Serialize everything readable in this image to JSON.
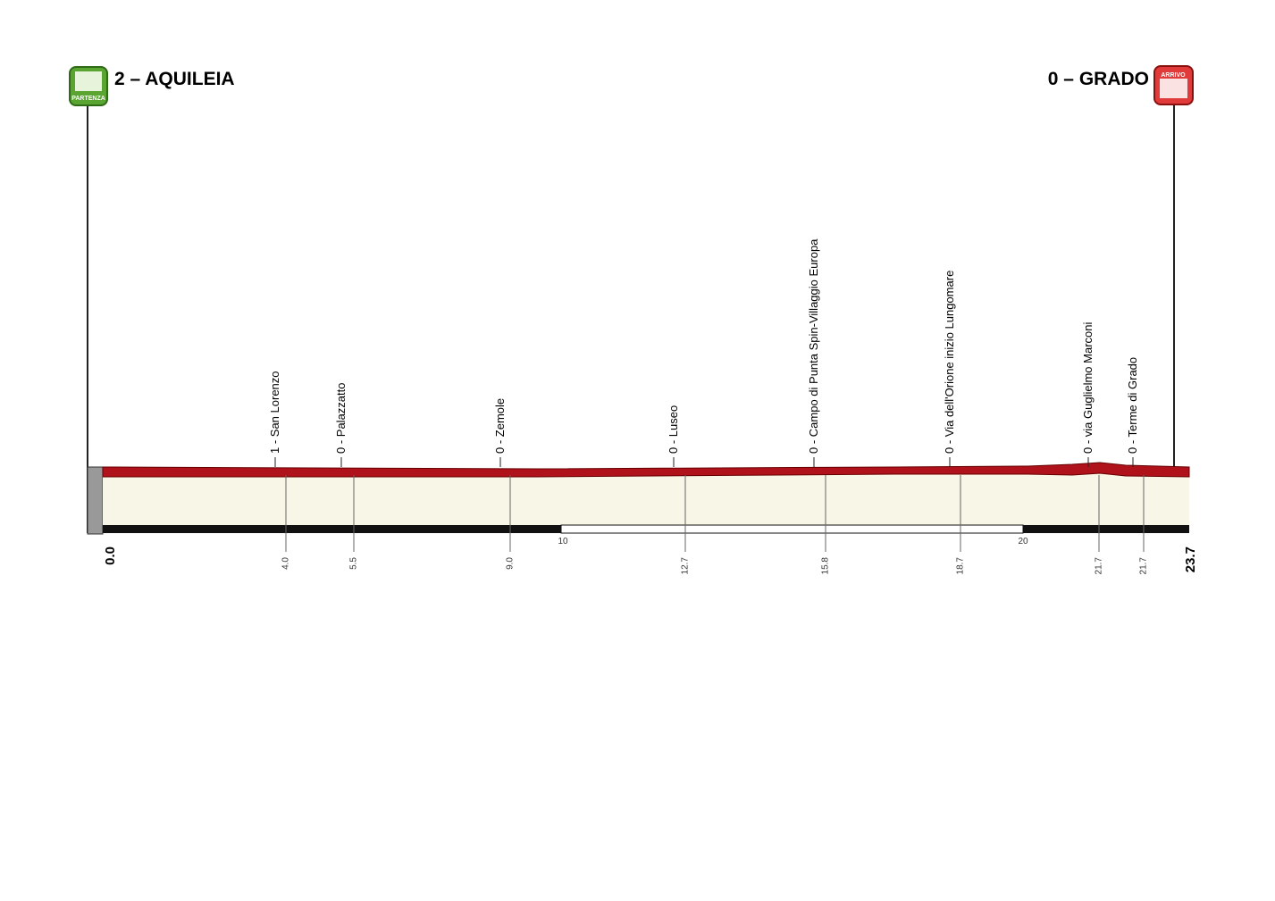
{
  "start": {
    "name": "2 – AQUILEIA",
    "badge": "PARTENZA",
    "km": "0.0"
  },
  "finish": {
    "name": "0 – GRADO",
    "badge": "ARRIVO",
    "km": "23.7"
  },
  "waypoints": [
    {
      "label": "1 - San Lorenzo",
      "km": "4.0"
    },
    {
      "label": "0 - Palazzatto",
      "km": "5.5"
    },
    {
      "label": "0 - Zemole",
      "km": "9.0"
    },
    {
      "label": "0 - Luseo",
      "km": "12.7"
    },
    {
      "label": "0 - Campo di Punta Spin-Villaggio Europa",
      "km": "15.8"
    },
    {
      "label": "0 - Via dell'Orione inizio Lungomare",
      "km": "18.7"
    },
    {
      "label": "0 - via Guglielmo Marconi",
      "km": "21.7"
    },
    {
      "label": "0 - Terme di Grado",
      "km": "21.7"
    }
  ],
  "scale": [
    "10",
    "20"
  ]
}
